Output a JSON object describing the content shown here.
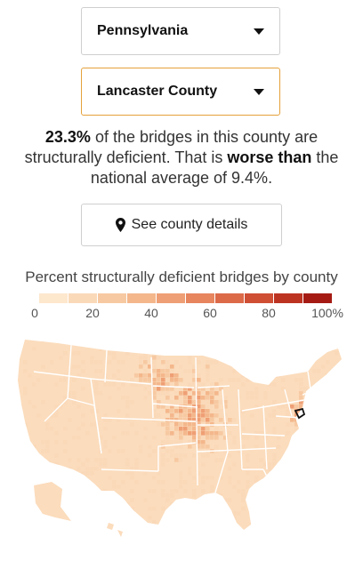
{
  "state_select": {
    "value": "Pennsylvania"
  },
  "county_select": {
    "value": "Lancaster County"
  },
  "summary": {
    "percent": "23.3%",
    "text_1": " of the bridges in this county are structurally deficient. That is ",
    "comparison": "worse than",
    "text_2": " the national average of 9.4%."
  },
  "details_button": {
    "label": "See county details"
  },
  "legend": {
    "title": "Percent structurally deficient bridges by county",
    "colors": [
      "#fde7cd",
      "#fad9b9",
      "#f7c9a2",
      "#f4b78c",
      "#ef9f75",
      "#e7855f",
      "#dc6a49",
      "#cf4f35",
      "#bd3322",
      "#a51b14"
    ],
    "ticks": [
      "0",
      "20",
      "40",
      "60",
      "80",
      "100%"
    ]
  },
  "map": {
    "fill_color": "#fbdcbc",
    "border_color": "#ffffff",
    "highlight_color": "#111111"
  }
}
